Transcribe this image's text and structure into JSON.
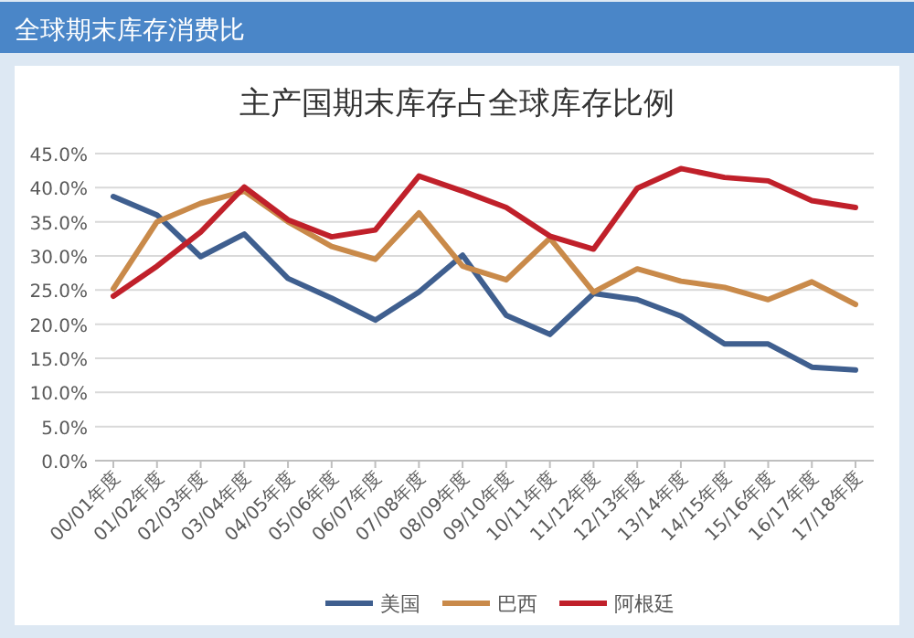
{
  "chart_data": {
    "type": "line",
    "title": "全球期末库存消费比",
    "subtitle": "主产国期末库存占全球库存比例",
    "categories": [
      "00/01年度",
      "01/02年度",
      "02/03年度",
      "03/04年度",
      "04/05年度",
      "05/06年度",
      "06/07年度",
      "07/08年度",
      "08/09年度",
      "09/10年度",
      "10/11年度",
      "11/12年度",
      "12/13年度",
      "13/14年度",
      "14/15年度",
      "15/16年度",
      "16/17年度",
      "17/18年度"
    ],
    "series": [
      {
        "name": "美国",
        "color": "#3f5f8f",
        "values": [
          38.7,
          36.0,
          29.9,
          33.2,
          26.7,
          23.8,
          20.6,
          24.7,
          30.1,
          21.3,
          18.5,
          24.5,
          23.6,
          21.2,
          17.1,
          17.1,
          13.7,
          13.3
        ]
      },
      {
        "name": "巴西",
        "color": "#c98a4a",
        "values": [
          25.2,
          35.0,
          37.7,
          39.5,
          35.0,
          31.4,
          29.5,
          36.3,
          28.5,
          26.5,
          32.6,
          24.7,
          28.1,
          26.3,
          25.4,
          23.6,
          26.2,
          22.9
        ]
      },
      {
        "name": "阿根廷",
        "color": "#c0202a",
        "values": [
          24.1,
          28.5,
          33.5,
          40.1,
          35.3,
          32.8,
          33.8,
          41.7,
          39.5,
          37.1,
          32.9,
          31.0,
          39.9,
          42.8,
          41.5,
          41.0,
          38.1,
          37.1
        ]
      }
    ],
    "ylim": [
      0,
      45
    ],
    "yticks": [
      {
        "value": 0,
        "label": "0.0%"
      },
      {
        "value": 5,
        "label": "5.0%"
      },
      {
        "value": 10,
        "label": "10.0%"
      },
      {
        "value": 15,
        "label": "15.0%"
      },
      {
        "value": 20,
        "label": "20.0%"
      },
      {
        "value": 25,
        "label": "25.0%"
      },
      {
        "value": 30,
        "label": "30.0%"
      },
      {
        "value": 35,
        "label": "35.0%"
      },
      {
        "value": 40,
        "label": "40.0%"
      },
      {
        "value": 45,
        "label": "45.0%"
      }
    ],
    "grid": "y",
    "legend": "bottom",
    "marker": "none",
    "line_style": "solid"
  }
}
